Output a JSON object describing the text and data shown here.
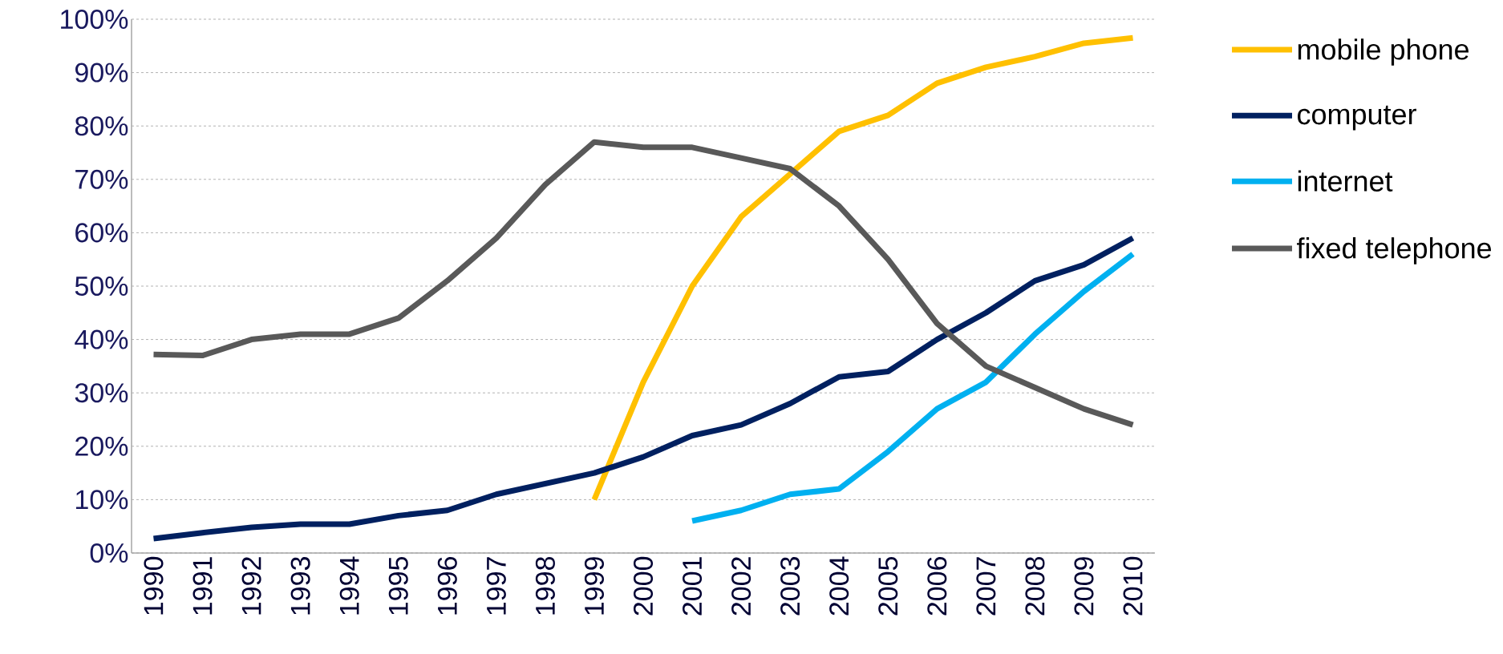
{
  "chart_data": {
    "type": "line",
    "categories": [
      "1990",
      "1991",
      "1992",
      "1993",
      "1994",
      "1995",
      "1996",
      "1997",
      "1998",
      "1999",
      "2000",
      "2001",
      "2002",
      "2003",
      "2004",
      "2005",
      "2006",
      "2007",
      "2008",
      "2009",
      "2010"
    ],
    "series": [
      {
        "name": "mobile phone",
        "color": "#ffc000",
        "values": [
          null,
          null,
          null,
          null,
          null,
          null,
          null,
          null,
          null,
          10,
          32,
          50,
          63,
          71,
          79,
          82,
          88,
          91,
          93,
          95.5,
          96.5
        ]
      },
      {
        "name": "computer",
        "color": "#002060",
        "values": [
          2.7,
          3.8,
          4.8,
          5.4,
          5.4,
          7,
          8,
          11,
          13,
          15,
          18,
          22,
          24,
          28,
          33,
          34,
          40,
          45,
          51,
          54,
          59
        ]
      },
      {
        "name": "internet",
        "color": "#00b0f0",
        "values": [
          null,
          null,
          null,
          null,
          null,
          null,
          null,
          null,
          null,
          null,
          null,
          6,
          8,
          11,
          12,
          19,
          27,
          32,
          41,
          49,
          56
        ]
      },
      {
        "name": "fixed telephone",
        "color": "#595959",
        "values": [
          37.2,
          37,
          40,
          41,
          41,
          44,
          51,
          59,
          69,
          77,
          76,
          76,
          74,
          72,
          65,
          55,
          43,
          35,
          31,
          27,
          24
        ]
      }
    ],
    "ylim": [
      0,
      100
    ],
    "yticks": [
      {
        "value": 0,
        "label": "0%"
      },
      {
        "value": 10,
        "label": "10%"
      },
      {
        "value": 20,
        "label": "20%"
      },
      {
        "value": 30,
        "label": "30%"
      },
      {
        "value": 40,
        "label": "40%"
      },
      {
        "value": 50,
        "label": "50%"
      },
      {
        "value": 60,
        "label": "60%"
      },
      {
        "value": 70,
        "label": "70%"
      },
      {
        "value": 80,
        "label": "80%"
      },
      {
        "value": 90,
        "label": "90%"
      },
      {
        "value": 100,
        "label": "100%"
      }
    ],
    "grid": "y",
    "legend": "right",
    "marker": "none",
    "line_style": "solid"
  }
}
